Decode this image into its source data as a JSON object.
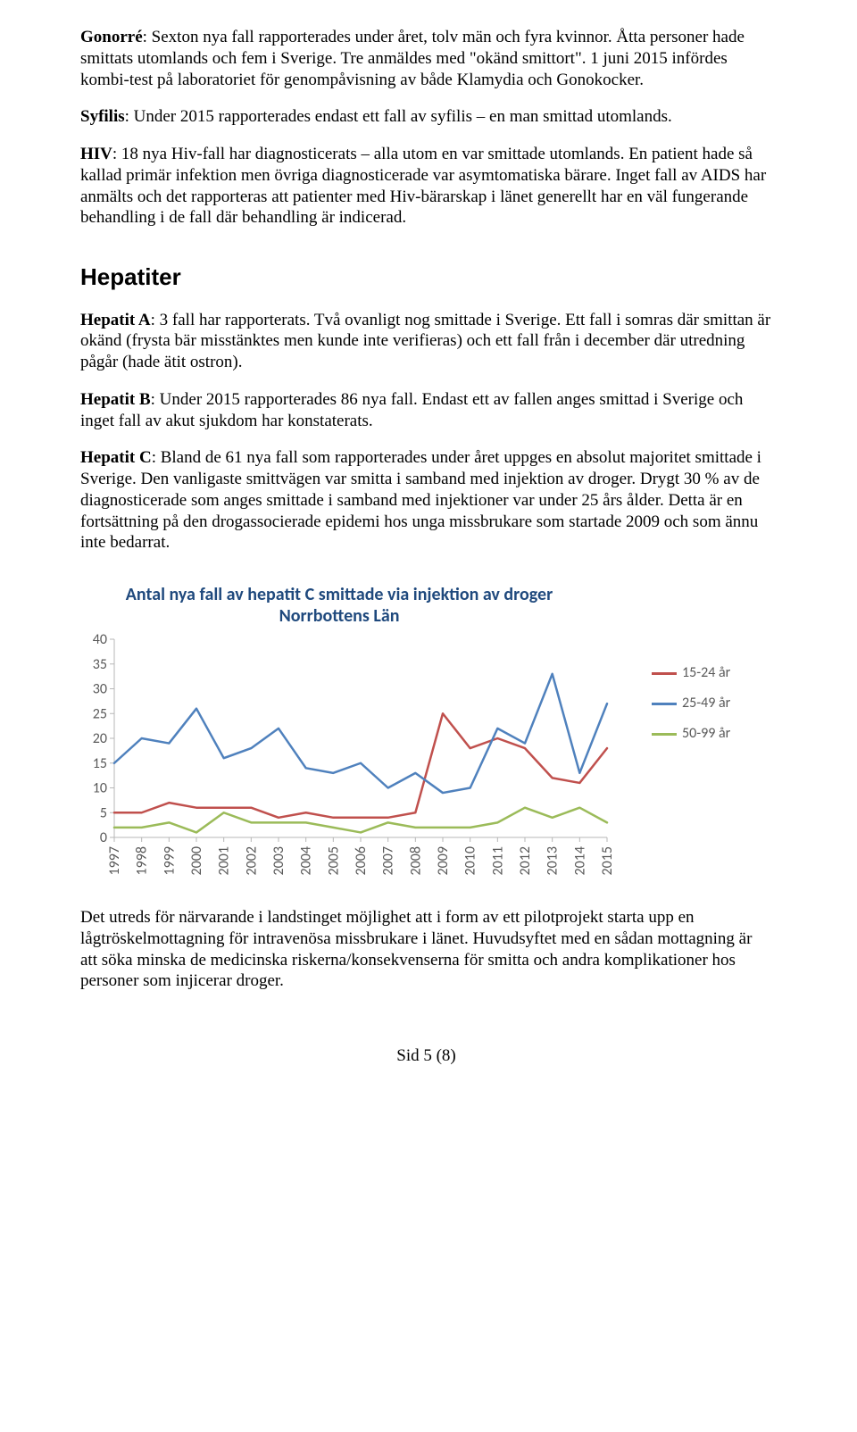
{
  "paragraphs": {
    "gonorre_label": "Gonorré",
    "gonorre_text": ": Sexton nya fall rapporterades under året, tolv män och fyra kvinnor. Åtta personer hade smittats utomlands och fem i Sverige. Tre anmäldes med \"okänd smittort\". 1 juni 2015 infördes kombi-test på laboratoriet för genompåvisning av både Klamydia och Gonokocker.",
    "syfilis_label": "Syfilis",
    "syfilis_text": ": Under 2015 rapporterades endast ett fall av syfilis – en man smittad utomlands.",
    "hiv_label": "HIV",
    "hiv_text": ": 18 nya Hiv-fall har diagnosticerats – alla utom en var smittade utomlands. En patient hade så kallad primär infektion men övriga diagnosticerade var asymtomatiska bärare. Inget fall av AIDS har anmälts och det rapporteras att patienter med Hiv-bärarskap i länet generellt har en väl fungerande behandling i de fall där behandling är indicerad.",
    "hepatiter_heading": "Hepatiter",
    "hepA_label": "Hepatit A",
    "hepA_text": ": 3 fall har rapporterats. Två ovanligt nog smittade i Sverige. Ett fall i somras där smittan är okänd (frysta bär misstänktes men kunde inte verifieras) och ett fall från i december där utredning pågår (hade ätit ostron).",
    "hepB_label": "Hepatit B",
    "hepB_text": ": Under 2015 rapporterades 86 nya fall. Endast ett av fallen anges smittad i Sverige och inget fall av akut sjukdom har konstaterats.",
    "hepC_label": "Hepatit C",
    "hepC_text": ": Bland de 61 nya fall som rapporterades under året uppges en absolut majoritet smittade i Sverige. Den vanligaste smittvägen var smitta i samband med injektion av droger. Drygt 30 % av de diagnosticerade som anges smittade i samband med injektioner var under 25 års ålder. Detta är en fortsättning på den drogassocierade epidemi hos unga missbrukare som startade 2009 och som ännu inte bedarrat.",
    "after_chart": "Det utreds för närvarande i landstinget möjlighet att i form av ett pilotprojekt starta upp en lågtröskelmottagning för intravenösa missbrukare i länet. Huvudsyftet med en sådan mottagning är att söka minska de medicinska riskerna/konsekvenserna för smitta och andra komplikationer hos personer som injicerar droger."
  },
  "chart": {
    "type": "line",
    "title_line1": "Antal nya fall av hepatit C smittade via injektion av droger",
    "title_line2": "Norrbottens Län",
    "title_color": "#1f497d",
    "title_fontsize": 20,
    "label_font": "Calibri",
    "label_fontsize": 16,
    "label_color": "#595959",
    "background_color": "#ffffff",
    "axis_color": "#b7b7b7",
    "line_width": 2.5,
    "ylim": [
      0,
      40
    ],
    "ytick_step": 5,
    "yticks": [
      0,
      5,
      10,
      15,
      20,
      25,
      30,
      35,
      40
    ],
    "x_categories": [
      "1997",
      "1998",
      "1999",
      "2000",
      "2001",
      "2002",
      "2003",
      "2004",
      "2005",
      "2006",
      "2007",
      "2008",
      "2009",
      "2010",
      "2011",
      "2012",
      "2013",
      "2014",
      "2015"
    ],
    "series": [
      {
        "name": "15-24 år",
        "color": "#c0504d",
        "values": [
          5,
          5,
          7,
          6,
          6,
          6,
          4,
          5,
          4,
          4,
          4,
          5,
          25,
          18,
          20,
          18,
          12,
          11,
          18
        ]
      },
      {
        "name": "25-49 år",
        "color": "#4f81bd",
        "values": [
          15,
          20,
          19,
          26,
          16,
          18,
          22,
          14,
          13,
          15,
          10,
          13,
          9,
          10,
          22,
          19,
          33,
          13,
          27
        ]
      },
      {
        "name": "50-99 år",
        "color": "#9bbb59",
        "values": [
          2,
          2,
          3,
          1,
          5,
          3,
          3,
          3,
          2,
          1,
          3,
          2,
          2,
          2,
          3,
          6,
          4,
          6,
          3
        ]
      }
    ],
    "legend_labels": [
      "15-24 år",
      "25-49 år",
      "50-99 år"
    ]
  },
  "footer": "Sid 5 (8)"
}
